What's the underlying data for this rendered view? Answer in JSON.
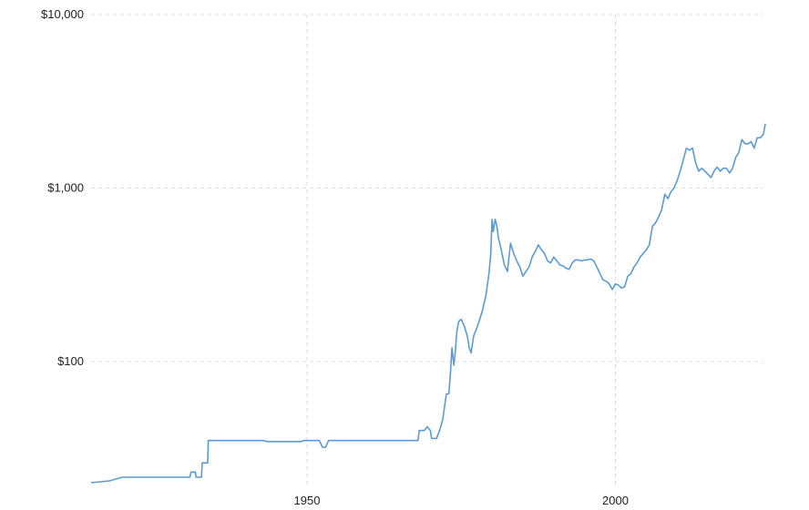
{
  "chart_data": {
    "type": "line",
    "title": "",
    "xlabel": "",
    "ylabel": "",
    "y_scale": "log",
    "ylim": [
      20,
      10000
    ],
    "xlim": [
      1915,
      2024
    ],
    "grid": true,
    "y_ticks": [
      {
        "value": 10000,
        "label": "$10,000"
      },
      {
        "value": 1000,
        "label": "$1,000"
      },
      {
        "value": 100,
        "label": "$100"
      }
    ],
    "x_ticks": [
      {
        "value": 1950,
        "label": "1950"
      },
      {
        "value": 2000,
        "label": "2000"
      }
    ],
    "series": [
      {
        "color": "#5b9bd5",
        "points": [
          [
            1915,
            20
          ],
          [
            1918,
            20.5
          ],
          [
            1919,
            21
          ],
          [
            1920,
            21.5
          ],
          [
            1922,
            21.5
          ],
          [
            1926,
            21.5
          ],
          [
            1930,
            21.5
          ],
          [
            1931,
            21.5
          ],
          [
            1931.2,
            23
          ],
          [
            1931.9,
            23
          ],
          [
            1932,
            21.5
          ],
          [
            1932.9,
            21.5
          ],
          [
            1933,
            26
          ],
          [
            1933.9,
            26
          ],
          [
            1934,
            35
          ],
          [
            1943,
            35
          ],
          [
            1943.5,
            34.5
          ],
          [
            1949,
            34.5
          ],
          [
            1949.5,
            35
          ],
          [
            1952,
            35
          ],
          [
            1952.5,
            32
          ],
          [
            1953,
            32
          ],
          [
            1953.5,
            35
          ],
          [
            1955,
            35
          ],
          [
            1956,
            35
          ],
          [
            1968,
            35
          ],
          [
            1968.2,
            40
          ],
          [
            1969,
            40
          ],
          [
            1969.5,
            42
          ],
          [
            1970,
            40
          ],
          [
            1970.2,
            36
          ],
          [
            1971,
            36
          ],
          [
            1971.5,
            40
          ],
          [
            1972,
            46
          ],
          [
            1972.4,
            58
          ],
          [
            1972.6,
            65
          ],
          [
            1973,
            65
          ],
          [
            1973.3,
            90
          ],
          [
            1973.5,
            120
          ],
          [
            1973.8,
            95
          ],
          [
            1974,
            110
          ],
          [
            1974.3,
            150
          ],
          [
            1974.6,
            170
          ],
          [
            1975,
            175
          ],
          [
            1975.5,
            160
          ],
          [
            1976,
            140
          ],
          [
            1976.3,
            120
          ],
          [
            1976.6,
            112
          ],
          [
            1977,
            140
          ],
          [
            1977.5,
            155
          ],
          [
            1978,
            175
          ],
          [
            1978.5,
            200
          ],
          [
            1979,
            240
          ],
          [
            1979.5,
            320
          ],
          [
            1979.8,
            420
          ],
          [
            1980,
            660
          ],
          [
            1980.2,
            560
          ],
          [
            1980.5,
            660
          ],
          [
            1980.8,
            600
          ],
          [
            1981,
            520
          ],
          [
            1981.5,
            440
          ],
          [
            1982,
            360
          ],
          [
            1982.5,
            330
          ],
          [
            1983,
            480
          ],
          [
            1983.5,
            420
          ],
          [
            1984,
            380
          ],
          [
            1984.5,
            350
          ],
          [
            1985,
            310
          ],
          [
            1985.5,
            330
          ],
          [
            1986,
            350
          ],
          [
            1986.5,
            400
          ],
          [
            1987,
            430
          ],
          [
            1987.5,
            470
          ],
          [
            1988,
            440
          ],
          [
            1988.5,
            420
          ],
          [
            1989,
            380
          ],
          [
            1989.5,
            370
          ],
          [
            1990,
            400
          ],
          [
            1990.5,
            380
          ],
          [
            1991,
            360
          ],
          [
            1991.5,
            355
          ],
          [
            1992,
            345
          ],
          [
            1992.5,
            340
          ],
          [
            1993,
            370
          ],
          [
            1993.5,
            385
          ],
          [
            1994,
            385
          ],
          [
            1994.5,
            380
          ],
          [
            1995,
            385
          ],
          [
            1995.5,
            385
          ],
          [
            1996,
            390
          ],
          [
            1996.5,
            380
          ],
          [
            1997,
            350
          ],
          [
            1997.5,
            320
          ],
          [
            1998,
            295
          ],
          [
            1998.5,
            290
          ],
          [
            1999,
            280
          ],
          [
            1999.5,
            260
          ],
          [
            2000,
            280
          ],
          [
            2000.5,
            275
          ],
          [
            2001,
            265
          ],
          [
            2001.5,
            270
          ],
          [
            2002,
            310
          ],
          [
            2002.5,
            320
          ],
          [
            2003,
            350
          ],
          [
            2003.5,
            370
          ],
          [
            2004,
            400
          ],
          [
            2004.5,
            420
          ],
          [
            2005,
            440
          ],
          [
            2005.5,
            470
          ],
          [
            2006,
            600
          ],
          [
            2006.5,
            630
          ],
          [
            2007,
            680
          ],
          [
            2007.5,
            750
          ],
          [
            2008,
            920
          ],
          [
            2008.5,
            870
          ],
          [
            2009,
            950
          ],
          [
            2009.5,
            1000
          ],
          [
            2010,
            1100
          ],
          [
            2010.5,
            1250
          ],
          [
            2011,
            1450
          ],
          [
            2011.5,
            1700
          ],
          [
            2012,
            1650
          ],
          [
            2012.5,
            1700
          ],
          [
            2013,
            1400
          ],
          [
            2013.5,
            1250
          ],
          [
            2014,
            1300
          ],
          [
            2014.5,
            1250
          ],
          [
            2015,
            1200
          ],
          [
            2015.5,
            1150
          ],
          [
            2016,
            1250
          ],
          [
            2016.5,
            1320
          ],
          [
            2017,
            1250
          ],
          [
            2017.5,
            1300
          ],
          [
            2018,
            1300
          ],
          [
            2018.5,
            1220
          ],
          [
            2019,
            1300
          ],
          [
            2019.5,
            1500
          ],
          [
            2020,
            1600
          ],
          [
            2020.5,
            1900
          ],
          [
            2021,
            1800
          ],
          [
            2021.5,
            1800
          ],
          [
            2022,
            1850
          ],
          [
            2022.5,
            1700
          ],
          [
            2023,
            1950
          ],
          [
            2023.5,
            1950
          ],
          [
            2024,
            2050
          ],
          [
            2024.3,
            2350
          ]
        ]
      }
    ]
  }
}
